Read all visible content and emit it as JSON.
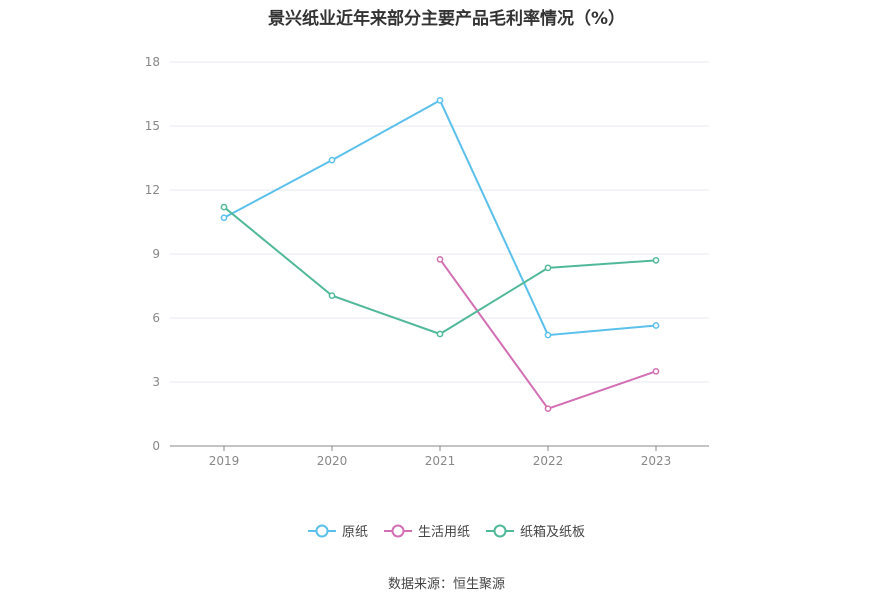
{
  "chart_data": {
    "type": "line",
    "title": "景兴纸业近年来部分主要产品毛利率情况（%）",
    "categories": [
      "2019",
      "2020",
      "2021",
      "2022",
      "2023"
    ],
    "ylim": [
      0,
      18
    ],
    "yticks": [
      0,
      3,
      6,
      9,
      12,
      15,
      18
    ],
    "grid": true,
    "legend_position": "bottom",
    "series": [
      {
        "name": "原纸",
        "color": "#5bc0eb",
        "values": [
          10.7,
          13.4,
          16.2,
          5.2,
          5.65
        ]
      },
      {
        "name": "生活用纸",
        "color": "#d36fb4",
        "values": [
          null,
          null,
          8.75,
          1.75,
          3.5
        ]
      },
      {
        "name": "纸箱及纸板",
        "color": "#52b89a",
        "values": [
          11.2,
          7.05,
          5.25,
          8.35,
          8.7
        ]
      }
    ]
  },
  "source": "数据来源：恒生聚源"
}
